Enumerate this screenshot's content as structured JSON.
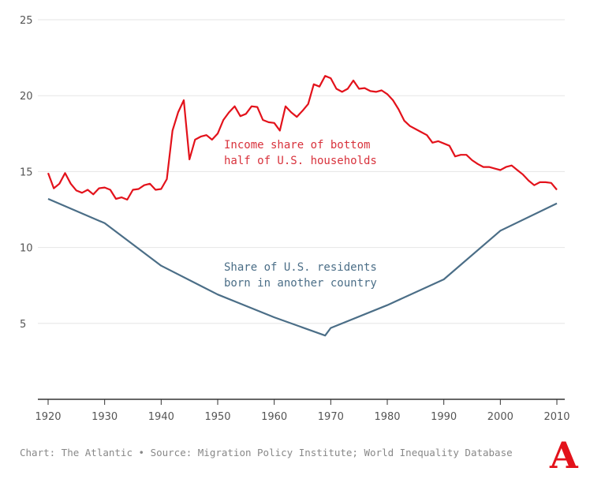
{
  "chart_data": {
    "type": "line",
    "title": "",
    "xlabel": "",
    "ylabel": "",
    "xlim": [
      1920,
      2010
    ],
    "ylim": [
      0,
      25
    ],
    "grid": true,
    "x_ticks": [
      "1920",
      "1930",
      "1940",
      "1950",
      "1960",
      "1970",
      "1980",
      "1990",
      "2000",
      "2010"
    ],
    "y_ticks": [
      "5",
      "10",
      "15",
      "20",
      "25"
    ],
    "series": [
      {
        "name": "Income share of bottom half of U.S. households",
        "label_lines": [
          "Income share of bottom",
          "half of U.S. households"
        ],
        "color": "#e3121b",
        "label_color": "#d8323c",
        "x": [
          1920,
          1921,
          1922,
          1923,
          1924,
          1925,
          1926,
          1927,
          1928,
          1929,
          1930,
          1931,
          1932,
          1933,
          1934,
          1935,
          1936,
          1937,
          1938,
          1939,
          1940,
          1941,
          1942,
          1943,
          1944,
          1945,
          1946,
          1947,
          1948,
          1949,
          1950,
          1951,
          1952,
          1953,
          1954,
          1955,
          1956,
          1957,
          1958,
          1959,
          1960,
          1961,
          1962,
          1963,
          1964,
          1965,
          1966,
          1967,
          1968,
          1969,
          1970,
          1971,
          1972,
          1973,
          1974,
          1975,
          1976,
          1977,
          1978,
          1979,
          1980,
          1981,
          1982,
          1983,
          1984,
          1985,
          1986,
          1987,
          1988,
          1989,
          1990,
          1991,
          1992,
          1993,
          1994,
          1995,
          1996,
          1997,
          1998,
          1999,
          2000,
          2001,
          2002,
          2003,
          2004,
          2005,
          2006,
          2007,
          2008,
          2009,
          2010
        ],
        "values": [
          14.9,
          13.9,
          14.2,
          14.9,
          14.2,
          13.75,
          13.6,
          13.8,
          13.5,
          13.9,
          13.95,
          13.8,
          13.2,
          13.3,
          13.15,
          13.8,
          13.85,
          14.1,
          14.2,
          13.8,
          13.85,
          14.5,
          17.7,
          18.9,
          19.7,
          15.8,
          17.1,
          17.3,
          17.4,
          17.1,
          17.5,
          18.4,
          18.9,
          19.3,
          18.65,
          18.8,
          19.3,
          19.25,
          18.4,
          18.25,
          18.2,
          17.7,
          19.3,
          18.9,
          18.6,
          19.0,
          19.45,
          20.75,
          20.6,
          21.3,
          21.15,
          20.45,
          20.25,
          20.45,
          21.0,
          20.45,
          20.5,
          20.3,
          20.25,
          20.35,
          20.1,
          19.7,
          19.1,
          18.35,
          18.0,
          17.8,
          17.6,
          17.4,
          16.9,
          17.0,
          16.85,
          16.7,
          16.0,
          16.1,
          16.1,
          15.75,
          15.5,
          15.3,
          15.3,
          15.2,
          15.1,
          15.3,
          15.4,
          15.1,
          14.8,
          14.4,
          14.1,
          14.3,
          14.3,
          14.25,
          13.8
        ]
      },
      {
        "name": "Share of U.S. residents born in another country",
        "label_lines": [
          "Share of U.S. residents",
          "born in another country"
        ],
        "color": "#4b6e87",
        "label_color": "#4b6e87",
        "x": [
          1920,
          1930,
          1940,
          1950,
          1960,
          1969,
          1970,
          1980,
          1990,
          2000,
          2010
        ],
        "values": [
          13.2,
          11.6,
          8.8,
          6.9,
          5.4,
          4.2,
          4.7,
          6.2,
          7.9,
          11.1,
          12.9
        ]
      }
    ]
  },
  "footer": {
    "credit": "Chart: The Atlantic • Source: Migration Policy Institute; World Inequality Database",
    "logo": "A"
  }
}
